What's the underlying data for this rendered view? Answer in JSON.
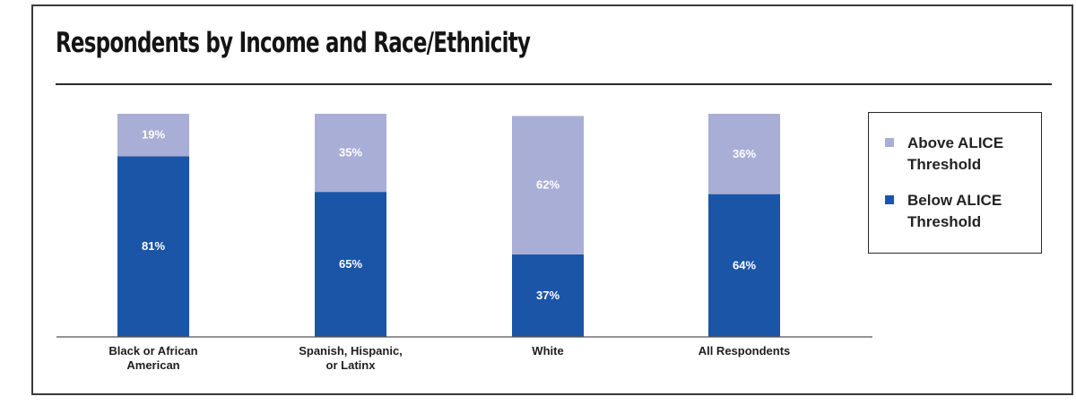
{
  "colors": {
    "above": "#a9aed6",
    "below": "#1b55a7",
    "axis": "#555555"
  },
  "chart_data": {
    "type": "bar",
    "stacked": true,
    "title": "Respondents by Income and Race/Ethnicity",
    "categories": [
      "Black or African American",
      "Spanish, Hispanic, or Latinx",
      "White",
      "All Respondents"
    ],
    "series": [
      {
        "name": "Below ALICE Threshold",
        "values": [
          81,
          65,
          37,
          64
        ],
        "labels": [
          "81%",
          "65%",
          "37%",
          "64%"
        ]
      },
      {
        "name": "Above ALICE Threshold",
        "values": [
          19,
          35,
          62,
          36
        ],
        "labels": [
          "19%",
          "35%",
          "62%",
          "36%"
        ]
      }
    ],
    "ylim": [
      0,
      100
    ],
    "grid": false,
    "legend_position": "right"
  }
}
